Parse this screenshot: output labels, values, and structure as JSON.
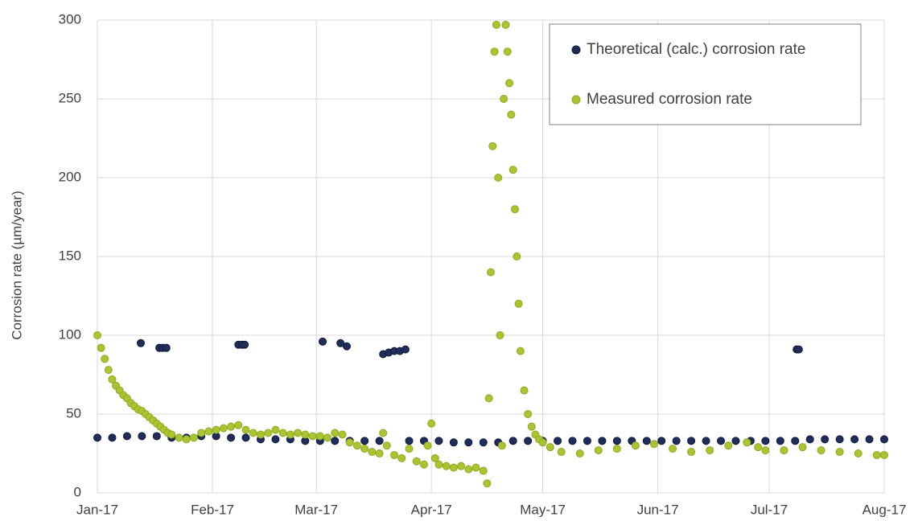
{
  "chart_data": {
    "type": "scatter",
    "y_label": "Corrosion rate  (µm/year)",
    "xlim": [
      0,
      212
    ],
    "xticks": [
      {
        "value": 0,
        "label": "Jan-17"
      },
      {
        "value": 31,
        "label": "Feb-17"
      },
      {
        "value": 59,
        "label": "Mar-17"
      },
      {
        "value": 90,
        "label": "Apr-17"
      },
      {
        "value": 120,
        "label": "May-17"
      },
      {
        "value": 151,
        "label": "Jun-17"
      },
      {
        "value": 181,
        "label": "Jul-17"
      },
      {
        "value": 212,
        "label": "Aug-17"
      }
    ],
    "ylim": [
      0,
      300
    ],
    "yticks": [
      0,
      50,
      100,
      150,
      200,
      250,
      300
    ],
    "grid": true,
    "legend": "upper right",
    "series": [
      {
        "name": "Theoretical (calc.) corrosion rate",
        "color": "#1f2d5a",
        "x": [
          0,
          4,
          8,
          11.7,
          12,
          16,
          16.7,
          17.6,
          18.6,
          20,
          24,
          28,
          32,
          36,
          38,
          39,
          39.7,
          40,
          44,
          48,
          52,
          56,
          60,
          60.7,
          64,
          65.5,
          67.2,
          68,
          72,
          76,
          77,
          78.5,
          80,
          81.5,
          83,
          84,
          88,
          92,
          96,
          100,
          104,
          108,
          112,
          116,
          120,
          124,
          128,
          132,
          136,
          140,
          144,
          148,
          152,
          156,
          160,
          164,
          168,
          172,
          176,
          180,
          184,
          188,
          188.4,
          189,
          192,
          196,
          200,
          204,
          208,
          212
        ],
        "values": [
          35,
          35,
          36,
          95,
          36,
          36,
          92,
          92,
          92,
          35,
          35,
          36,
          36,
          35,
          94,
          94,
          94,
          35,
          34,
          34,
          34,
          33,
          33,
          96,
          33,
          95,
          93,
          33,
          33,
          33,
          88,
          89,
          90,
          90,
          91,
          33,
          33,
          33,
          32,
          32,
          32,
          32,
          33,
          33,
          33,
          33,
          33,
          33,
          33,
          33,
          33,
          33,
          33,
          33,
          33,
          33,
          33,
          33,
          33,
          33,
          33,
          33,
          91,
          91,
          34,
          34,
          34,
          34,
          34,
          34
        ]
      },
      {
        "name": "Measured corrosion rate",
        "color": "#a9c52f",
        "x": [
          0,
          1,
          2,
          3,
          4,
          5,
          6,
          7,
          8,
          9,
          10,
          11,
          12,
          13,
          14,
          15,
          16,
          17,
          18,
          19,
          20,
          22,
          24,
          26,
          28,
          30,
          32,
          34,
          36,
          38,
          40,
          42,
          44,
          46,
          48,
          50,
          52,
          54,
          56,
          58,
          60,
          62,
          64,
          66,
          68,
          70,
          72,
          74,
          76,
          77,
          78,
          80,
          82,
          84,
          86,
          88,
          89,
          90,
          91,
          92,
          94,
          96,
          98,
          100,
          102,
          104,
          105,
          105.5,
          106,
          106.5,
          107,
          107.5,
          108,
          108.5,
          109,
          109.5,
          110,
          110.5,
          111,
          111.5,
          112,
          112.5,
          113,
          113.5,
          114,
          115,
          116,
          117,
          118,
          119,
          120,
          122,
          125,
          130,
          135,
          140,
          145,
          150,
          155,
          160,
          165,
          170,
          175,
          178,
          180,
          185,
          190,
          195,
          200,
          205,
          210,
          212
        ],
        "values": [
          100,
          92,
          85,
          78,
          72,
          68,
          65,
          62,
          60,
          57,
          55,
          53,
          52,
          50,
          48,
          46,
          44,
          42,
          40,
          38,
          37,
          35,
          34,
          35,
          38,
          39,
          40,
          41,
          42,
          43,
          40,
          38,
          37,
          38,
          40,
          38,
          37,
          38,
          37,
          36,
          36,
          35,
          38,
          37,
          32,
          30,
          28,
          26,
          25,
          38,
          30,
          24,
          22,
          28,
          20,
          18,
          30,
          44,
          22,
          18,
          17,
          16,
          17,
          15,
          16,
          14,
          6,
          60,
          140,
          220,
          280,
          297,
          200,
          100,
          30,
          250,
          297,
          280,
          260,
          240,
          205,
          180,
          150,
          120,
          90,
          65,
          50,
          42,
          37,
          34,
          32,
          29,
          26,
          25,
          27,
          28,
          30,
          31,
          28,
          26,
          27,
          30,
          32,
          29,
          27,
          27,
          29,
          27,
          26,
          25,
          24,
          24
        ]
      }
    ]
  }
}
